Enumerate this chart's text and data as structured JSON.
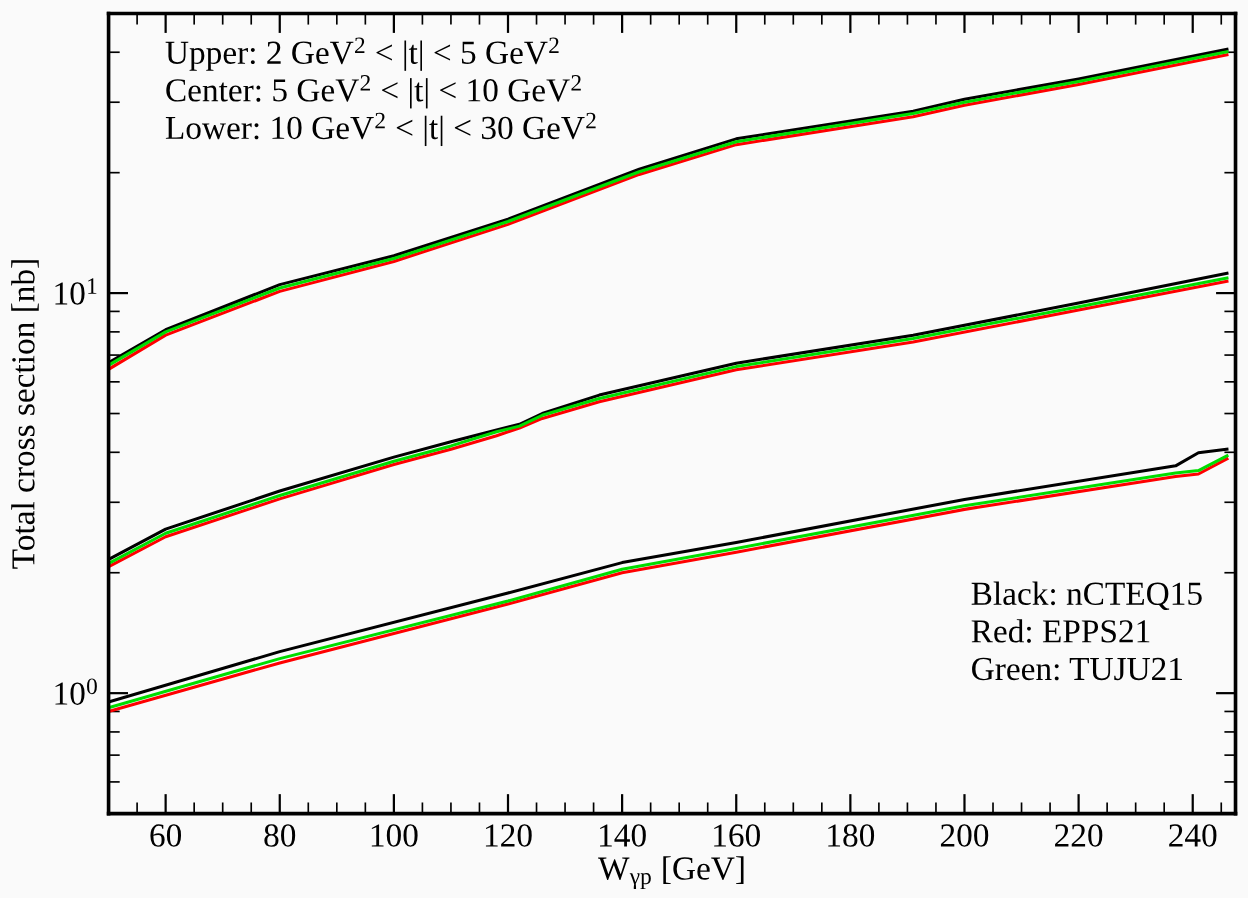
{
  "chart_data": {
    "type": "line",
    "xlabel": "W$_{γp}$ [GeV]",
    "ylabel": "Total cross section [nb]",
    "log": "y",
    "xlim": [
      50,
      247.5
    ],
    "ylim": [
      0.5,
      50
    ],
    "xticks": [
      60,
      80,
      100,
      120,
      140,
      160,
      180,
      200,
      220,
      240
    ],
    "yticks": [
      {
        "value": 1,
        "label": "10$^{0}$"
      },
      {
        "value": 10,
        "label": "10$^{1}$"
      }
    ],
    "grid": false,
    "legend": false,
    "marker": "none",
    "line_style": "solid",
    "annotations": [
      "Upper: 2 GeV$^{2}$ < |t| < 5 GeV$^{2}$",
      "Center: 5 GeV$^{2}$ < |t| < 10 GeV$^{2}$",
      "Lower: 10 GeV$^{2}$ < |t| < 30 GeV$^{2}$",
      "Black: nCTEQ15",
      "Red: EPPS21",
      "Green: TUJU21"
    ],
    "series": [
      {
        "color": "#000000",
        "x": [
          50,
          60,
          80,
          100,
          120,
          143,
          160,
          191,
          200,
          220,
          246
        ],
        "values": [
          6.7,
          8.1,
          10.5,
          12.4,
          15.3,
          20.4,
          24.3,
          28.5,
          30.5,
          34.3,
          40.7
        ]
      },
      {
        "color": "#ff0000",
        "x": [
          50,
          60,
          80,
          100,
          120,
          143,
          160,
          191,
          200,
          220,
          246
        ],
        "values": [
          6.45,
          7.85,
          10.1,
          12.0,
          14.85,
          19.8,
          23.5,
          27.6,
          29.5,
          33.2,
          39.4
        ]
      },
      {
        "color": "#00dd00",
        "x": [
          50,
          60,
          80,
          100,
          120,
          143,
          160,
          191,
          200,
          220,
          246
        ],
        "values": [
          6.6,
          8.0,
          10.3,
          12.2,
          15.1,
          20.1,
          23.9,
          28.1,
          30.0,
          33.8,
          40.1
        ]
      },
      {
        "color": "#000000",
        "x": [
          50,
          60,
          80,
          100,
          110,
          118,
          122,
          126,
          136,
          160,
          191,
          220,
          246
        ],
        "values": [
          2.16,
          2.57,
          3.2,
          3.89,
          4.25,
          4.55,
          4.7,
          5.0,
          5.56,
          6.68,
          7.85,
          9.44,
          11.2
        ]
      },
      {
        "color": "#ff0000",
        "x": [
          50,
          60,
          80,
          100,
          110,
          118,
          122,
          126,
          136,
          160,
          191,
          220,
          246
        ],
        "values": [
          2.07,
          2.46,
          3.06,
          3.73,
          4.07,
          4.4,
          4.6,
          4.86,
          5.35,
          6.43,
          7.55,
          9.07,
          10.7
        ]
      },
      {
        "color": "#00dd00",
        "x": [
          50,
          60,
          80,
          100,
          110,
          118,
          122,
          126,
          136,
          160,
          191,
          220,
          246
        ],
        "values": [
          2.11,
          2.51,
          3.12,
          3.8,
          4.15,
          4.5,
          4.65,
          4.95,
          5.45,
          6.55,
          7.7,
          9.25,
          10.9
        ]
      },
      {
        "color": "#000000",
        "x": [
          50,
          80,
          120,
          140,
          160,
          200,
          237,
          241,
          246
        ],
        "values": [
          0.95,
          1.27,
          1.78,
          2.12,
          2.38,
          3.05,
          3.7,
          3.99,
          4.07
        ]
      },
      {
        "color": "#ff0000",
        "x": [
          50,
          80,
          120,
          140,
          160,
          200,
          237,
          241,
          246
        ],
        "values": [
          0.9,
          1.19,
          1.67,
          2.0,
          2.25,
          2.88,
          3.48,
          3.53,
          3.85
        ]
      },
      {
        "color": "#00dd00",
        "x": [
          50,
          80,
          120,
          140,
          160,
          200,
          237,
          241,
          246
        ],
        "values": [
          0.92,
          1.22,
          1.7,
          2.04,
          2.3,
          2.94,
          3.55,
          3.6,
          3.92
        ]
      }
    ]
  }
}
